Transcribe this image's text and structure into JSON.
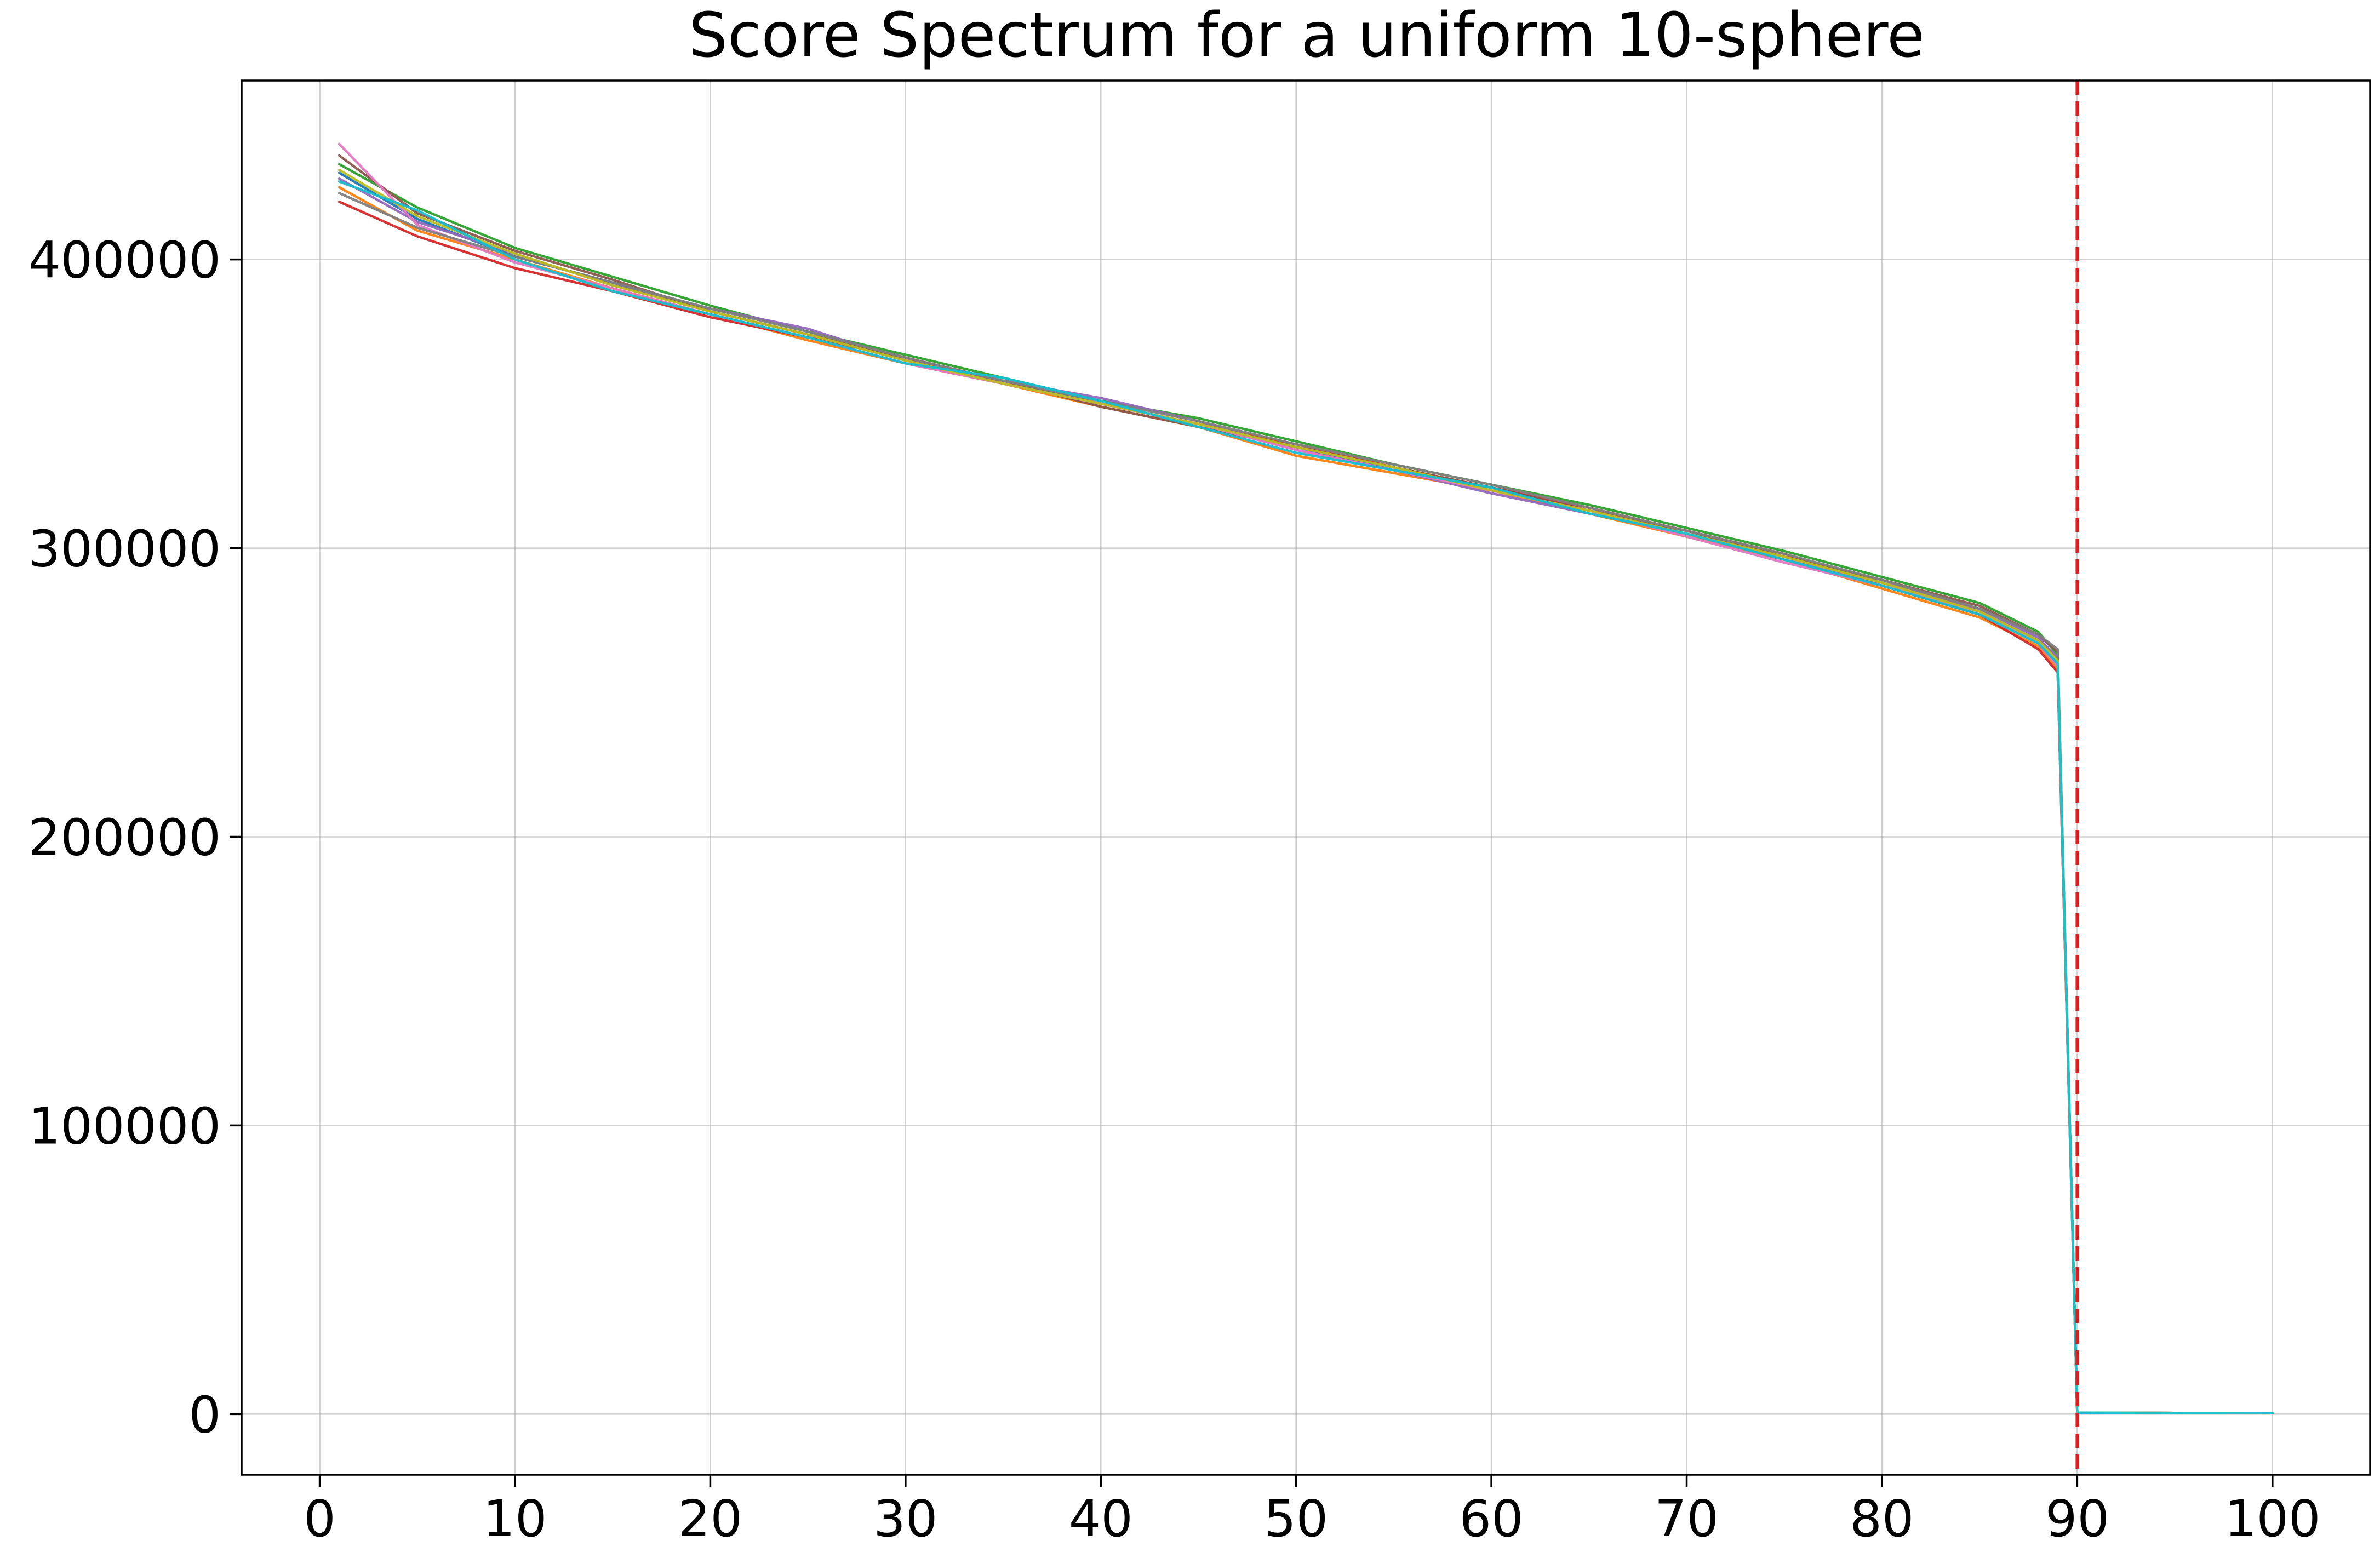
{
  "chart_data": {
    "type": "line",
    "title": "Score Spectrum for a uniform 10-sphere",
    "xlabel": "",
    "ylabel": "",
    "xlim": [
      -4,
      105
    ],
    "ylim": [
      -21000,
      462000
    ],
    "x_ticks": [
      0,
      10,
      20,
      30,
      40,
      50,
      60,
      70,
      80,
      90,
      100
    ],
    "x_tick_labels": [
      "0",
      "10",
      "20",
      "30",
      "40",
      "50",
      "60",
      "70",
      "80",
      "90",
      "100"
    ],
    "y_ticks": [
      0,
      100000,
      200000,
      300000,
      400000
    ],
    "y_tick_labels": [
      "0",
      "100000",
      "200000",
      "300000",
      "400000"
    ],
    "grid": true,
    "reference_line": {
      "orientation": "vertical",
      "x": 90,
      "color": "#e41a1c",
      "style": "dashed"
    },
    "series_colors": [
      "#1f77b4",
      "#ff7f0e",
      "#2ca02c",
      "#d62728",
      "#9467bd",
      "#8c564b",
      "#e377c2",
      "#7f7f7f",
      "#bcbd22",
      "#17becf"
    ],
    "x": [
      1,
      5,
      10,
      15,
      20,
      25,
      30,
      35,
      40,
      45,
      50,
      55,
      60,
      65,
      70,
      75,
      80,
      85,
      88,
      89,
      90,
      95,
      100
    ],
    "series": [
      {
        "values": [
          430000,
          414000,
          401000,
          392000,
          382000,
          374000,
          365000,
          358000,
          350000,
          343000,
          335000,
          327000,
          321000,
          313000,
          305000,
          297000,
          288000,
          278000,
          268000,
          260000,
          500,
          400,
          300
        ]
      },
      {
        "values": [
          425000,
          410000,
          400000,
          390000,
          381000,
          372000,
          364000,
          357000,
          349000,
          342000,
          332000,
          326000,
          320000,
          312000,
          304000,
          296000,
          286000,
          276000,
          266000,
          258000,
          500,
          400,
          300
        ]
      },
      {
        "values": [
          433000,
          418000,
          404000,
          394000,
          384000,
          375000,
          367000,
          359000,
          351000,
          345000,
          337000,
          329000,
          322000,
          315000,
          307000,
          299000,
          290000,
          281000,
          271000,
          263000,
          500,
          400,
          300
        ]
      },
      {
        "values": [
          420000,
          408000,
          397000,
          389000,
          380000,
          373000,
          366000,
          357000,
          350000,
          343000,
          336000,
          328000,
          321000,
          314000,
          306000,
          298000,
          287000,
          277000,
          265000,
          257000,
          500,
          400,
          300
        ]
      },
      {
        "values": [
          428000,
          413000,
          402000,
          391000,
          383000,
          376000,
          365000,
          358000,
          352000,
          344000,
          334000,
          327000,
          319000,
          312000,
          305000,
          296000,
          288000,
          279000,
          269000,
          262000,
          500,
          400,
          300
        ]
      },
      {
        "values": [
          436000,
          416000,
          403000,
          393000,
          382000,
          374000,
          366000,
          358000,
          349000,
          342000,
          335000,
          328000,
          321000,
          313000,
          306000,
          297000,
          289000,
          280000,
          270000,
          264000,
          500,
          400,
          300
        ]
      },
      {
        "values": [
          440000,
          412000,
          399000,
          390000,
          381000,
          373000,
          364000,
          357000,
          350000,
          343000,
          334000,
          327000,
          320000,
          313000,
          304000,
          295000,
          287000,
          278000,
          267000,
          259000,
          500,
          400,
          300
        ]
      },
      {
        "values": [
          423000,
          411000,
          401000,
          392000,
          383000,
          375000,
          366000,
          358000,
          351000,
          344000,
          336000,
          329000,
          322000,
          314000,
          306000,
          298000,
          289000,
          279000,
          270000,
          265000,
          500,
          400,
          300
        ]
      },
      {
        "values": [
          431000,
          415000,
          402000,
          391000,
          382000,
          374000,
          365000,
          357000,
          350000,
          343000,
          335000,
          328000,
          320000,
          313000,
          305000,
          297000,
          288000,
          278000,
          268000,
          261000,
          500,
          400,
          300
        ]
      },
      {
        "values": [
          427000,
          417000,
          400000,
          389000,
          381000,
          373000,
          364000,
          359000,
          351000,
          342000,
          333000,
          327000,
          321000,
          312000,
          305000,
          296000,
          287000,
          277000,
          267000,
          260000,
          500,
          400,
          300
        ]
      }
    ]
  }
}
